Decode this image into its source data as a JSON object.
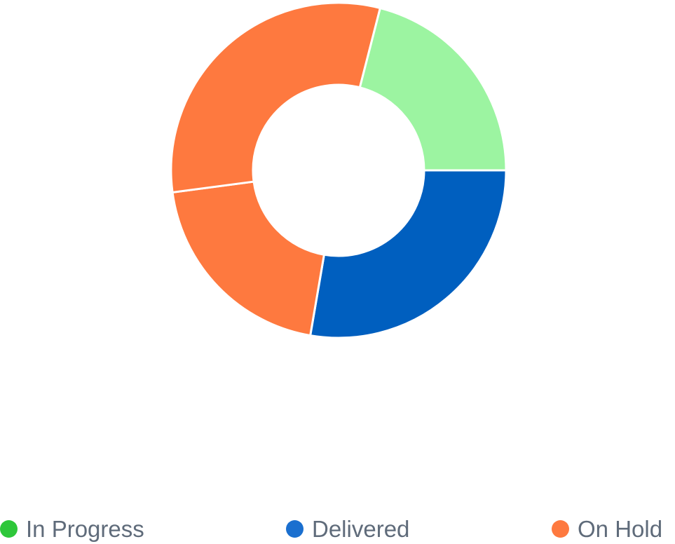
{
  "chart_data": {
    "type": "pie",
    "variant": "donut",
    "title": "",
    "legend_position": "bottom",
    "slices": [
      {
        "name": "Delivered",
        "value": 27.7,
        "color": "#005fbf"
      },
      {
        "name": "On Hold",
        "value": 20.2,
        "color": "#fe793f"
      },
      {
        "name": "On Hold",
        "value": 31.1,
        "color": "#fe793f"
      },
      {
        "name": "In Progress",
        "value": 21.0,
        "color": "#9cf4a1"
      }
    ],
    "legend": [
      {
        "label": "In Progress",
        "color": "#2ec73a"
      },
      {
        "label": "Delivered",
        "color": "#1a6fcf"
      },
      {
        "label": "On Hold",
        "color": "#fe793f"
      }
    ]
  }
}
